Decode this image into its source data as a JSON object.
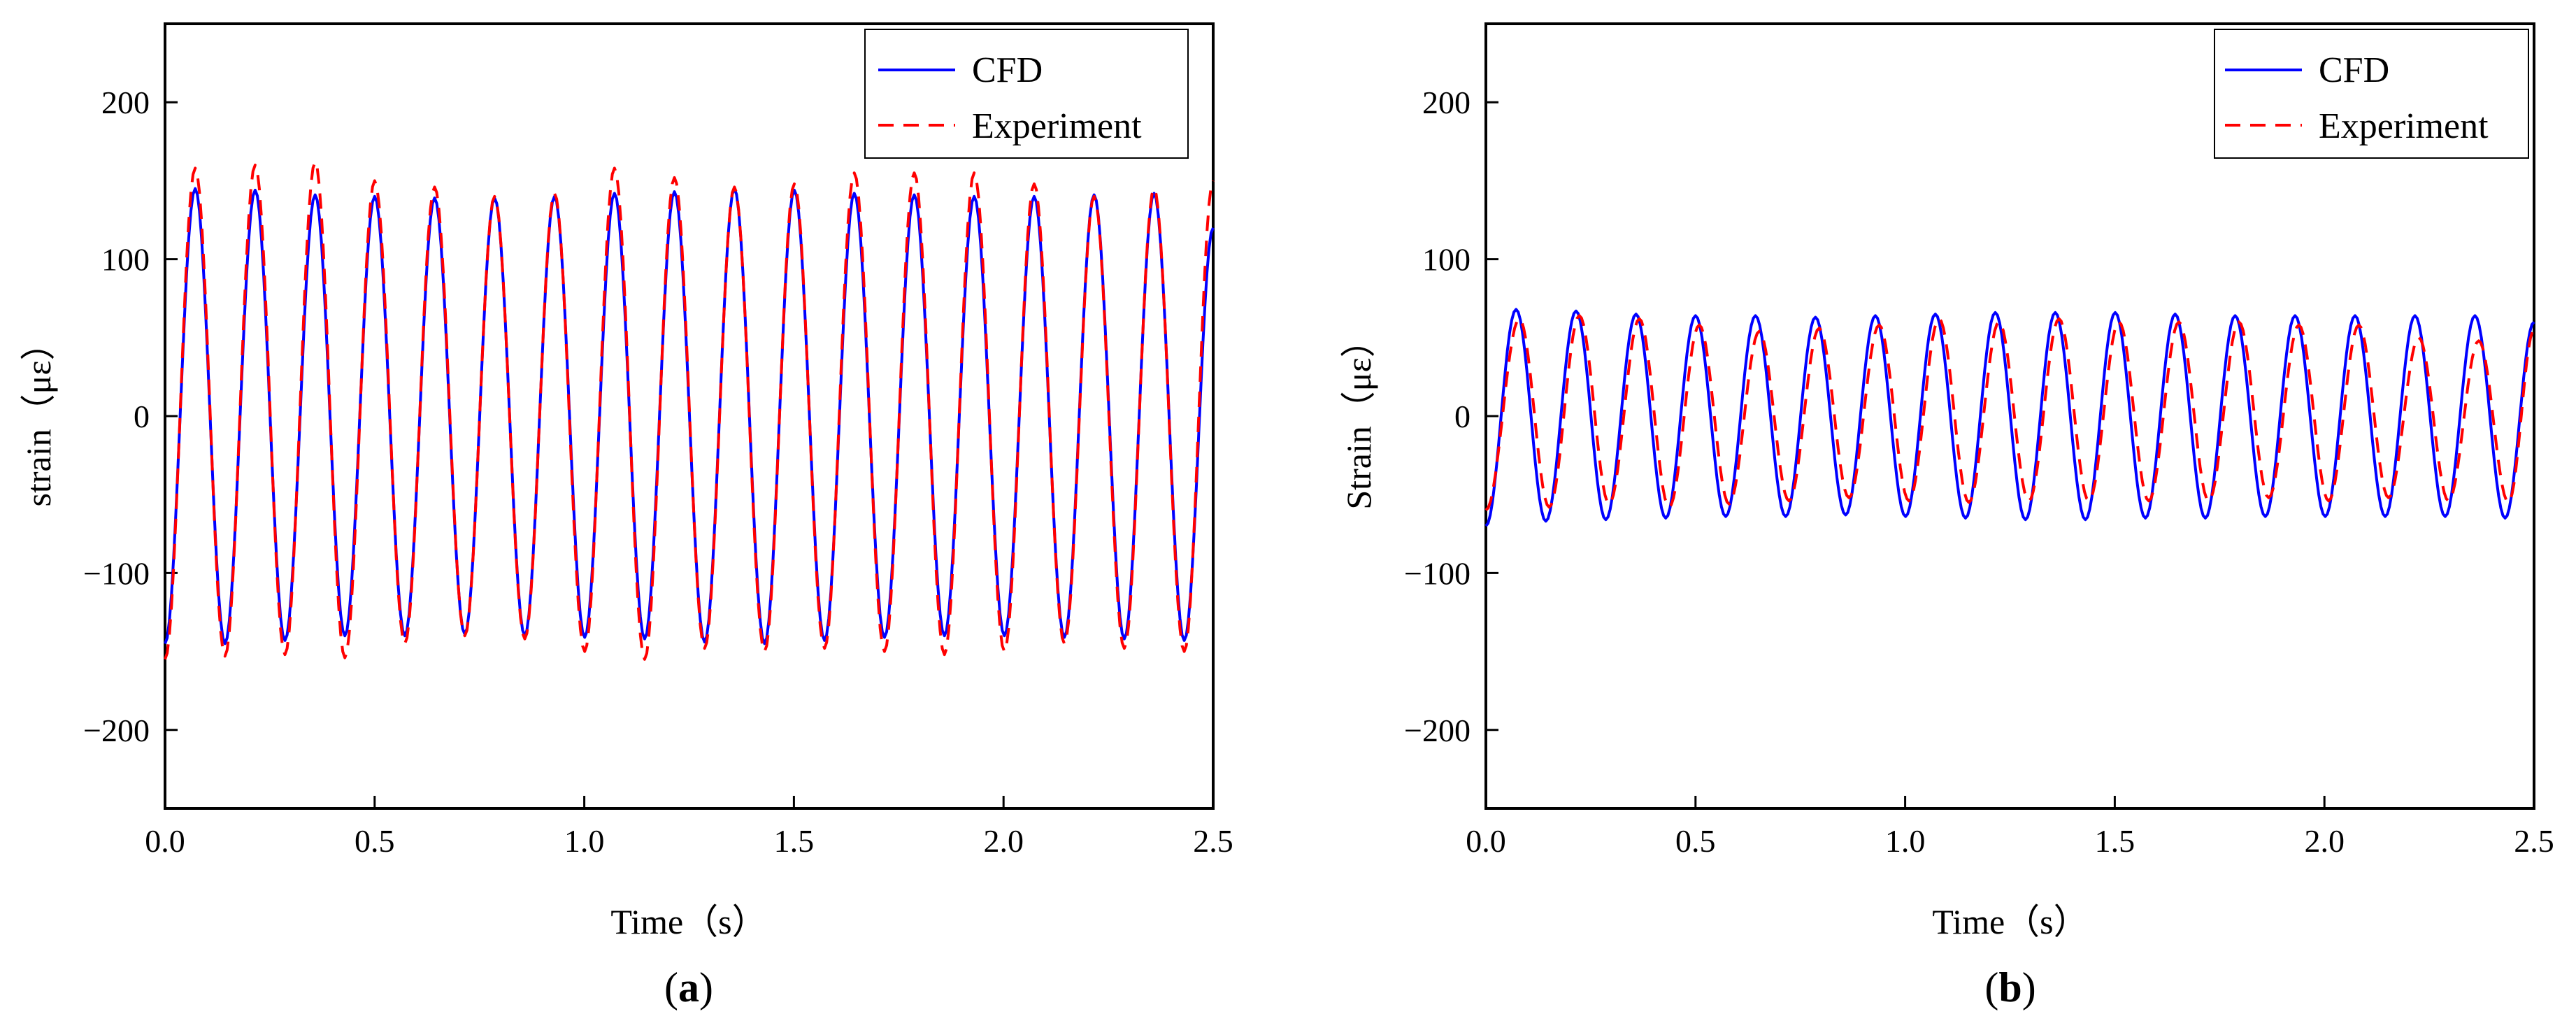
{
  "figure": {
    "panels": [
      {
        "id": "a",
        "open": "(",
        "letter": "a",
        "close": ")"
      },
      {
        "id": "b",
        "open": "(",
        "letter": "b",
        "close": ")"
      }
    ]
  },
  "chart_data": [
    {
      "type": "line",
      "panel": "(a)",
      "title": "",
      "xlabel": "Time（s）",
      "ylabel": "strain（με）",
      "xlim": [
        0.0,
        2.5
      ],
      "ylim": [
        -250,
        250
      ],
      "xticks": [
        0.0,
        0.5,
        1.0,
        1.5,
        2.0,
        2.5
      ],
      "xtick_labels": [
        "0.0",
        "0.5",
        "1.0",
        "1.5",
        "2.0",
        "2.5"
      ],
      "yticks": [
        -200,
        -100,
        0,
        100,
        200
      ],
      "ytick_labels": [
        "−200",
        "−100",
        "0",
        "100",
        "200"
      ],
      "legend_position": "top-right",
      "series": [
        {
          "name": "CFD",
          "style": "solid",
          "color": "#0000ff",
          "points_x": [
            0.0,
            0.072,
            0.143,
            0.215,
            0.286,
            0.358,
            0.429,
            0.5,
            0.572,
            0.643,
            0.715,
            0.786,
            0.858,
            0.929,
            1.001,
            1.072,
            1.144,
            1.215,
            1.287,
            1.358,
            1.43,
            1.501,
            1.573,
            1.644,
            1.716,
            1.787,
            1.859,
            1.93,
            2.002,
            2.073,
            2.145,
            2.216,
            2.288,
            2.359,
            2.431,
            2.5
          ],
          "points_y": [
            -145,
            145,
            -145,
            144,
            -143,
            141,
            -140,
            140,
            -140,
            139,
            -139,
            139,
            -140,
            140,
            -141,
            142,
            -142,
            143,
            -144,
            145,
            -145,
            144,
            -143,
            142,
            -141,
            141,
            -140,
            140,
            -140,
            140,
            -141,
            141,
            -142,
            142,
            -143,
            120
          ]
        },
        {
          "name": "Experiment",
          "style": "dashed",
          "color": "#ff0000",
          "points_x": [
            0.0,
            0.072,
            0.143,
            0.215,
            0.286,
            0.358,
            0.429,
            0.5,
            0.572,
            0.643,
            0.715,
            0.786,
            0.858,
            0.929,
            1.001,
            1.072,
            1.144,
            1.215,
            1.287,
            1.358,
            1.43,
            1.501,
            1.573,
            1.644,
            1.716,
            1.787,
            1.859,
            1.93,
            2.002,
            2.073,
            2.145,
            2.216,
            2.288,
            2.359,
            2.431,
            2.5
          ],
          "points_y": [
            -155,
            158,
            -153,
            160,
            -152,
            162,
            -154,
            150,
            -145,
            146,
            -140,
            140,
            -142,
            142,
            -150,
            158,
            -155,
            152,
            -148,
            146,
            -150,
            148,
            -148,
            155,
            -150,
            155,
            -152,
            155,
            -150,
            148,
            -145,
            140,
            -148,
            145,
            -150,
            150
          ]
        }
      ]
    },
    {
      "type": "line",
      "panel": "(b)",
      "title": "",
      "xlabel": "Time（s）",
      "ylabel": "Strain（με）",
      "xlim": [
        0.0,
        2.5
      ],
      "ylim": [
        -250,
        250
      ],
      "xticks": [
        0.0,
        0.5,
        1.0,
        1.5,
        2.0,
        2.5
      ],
      "xtick_labels": [
        "0.0",
        "0.5",
        "1.0",
        "1.5",
        "2.0",
        "2.5"
      ],
      "yticks": [
        -200,
        -100,
        0,
        100,
        200
      ],
      "ytick_labels": [
        "−200",
        "−100",
        "0",
        "100",
        "200"
      ],
      "legend_position": "top-right",
      "series": [
        {
          "name": "CFD",
          "style": "solid",
          "color": "#0000ff",
          "points_x": [
            0.0,
            0.072,
            0.143,
            0.215,
            0.286,
            0.358,
            0.429,
            0.5,
            0.572,
            0.643,
            0.715,
            0.786,
            0.858,
            0.929,
            1.001,
            1.072,
            1.144,
            1.215,
            1.287,
            1.358,
            1.43,
            1.501,
            1.573,
            1.644,
            1.716,
            1.787,
            1.859,
            1.93,
            2.002,
            2.073,
            2.145,
            2.216,
            2.288,
            2.359,
            2.431,
            2.5
          ],
          "points_y": [
            -70,
            68,
            -67,
            67,
            -66,
            65,
            -65,
            64,
            -64,
            64,
            -64,
            63,
            -63,
            64,
            -64,
            65,
            -65,
            66,
            -66,
            66,
            -66,
            66,
            -65,
            65,
            -65,
            64,
            -64,
            64,
            -64,
            64,
            -64,
            64,
            -64,
            64,
            -65,
            60
          ]
        },
        {
          "name": "Experiment",
          "style": "dashed",
          "color": "#ff0000",
          "points_x": [
            0.0,
            0.08,
            0.151,
            0.223,
            0.294,
            0.366,
            0.437,
            0.509,
            0.58,
            0.652,
            0.723,
            0.795,
            0.866,
            0.938,
            1.009,
            1.081,
            1.152,
            1.224,
            1.295,
            1.367,
            1.438,
            1.51,
            1.581,
            1.653,
            1.724,
            1.796,
            1.867,
            1.939,
            2.01,
            2.082,
            2.153,
            2.225,
            2.296,
            2.368,
            2.439,
            2.5
          ],
          "points_y": [
            -60,
            62,
            -58,
            64,
            -56,
            62,
            -58,
            58,
            -56,
            54,
            -54,
            56,
            -52,
            58,
            -54,
            62,
            -55,
            60,
            -54,
            62,
            -54,
            60,
            -54,
            60,
            -54,
            60,
            -52,
            58,
            -54,
            58,
            -52,
            50,
            -54,
            48,
            -55,
            55
          ]
        }
      ]
    }
  ]
}
